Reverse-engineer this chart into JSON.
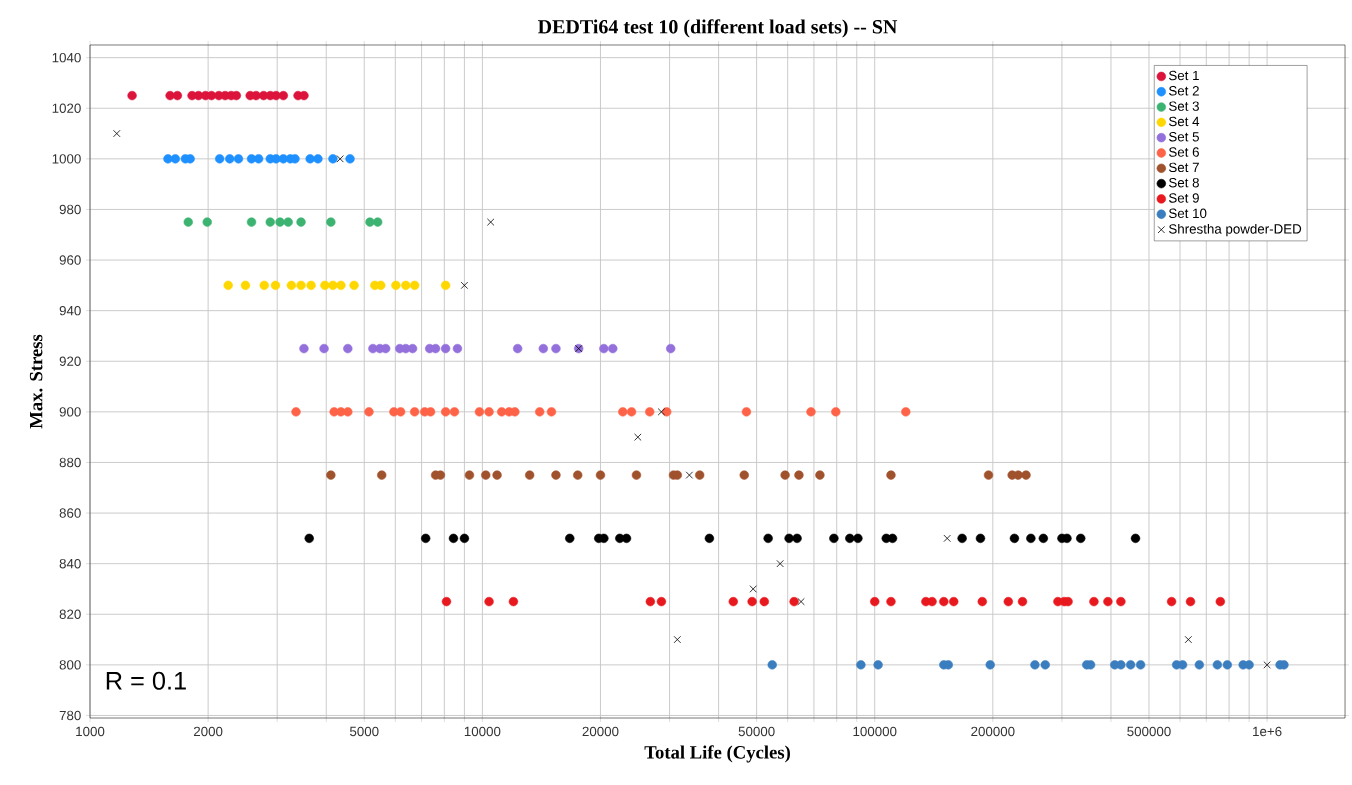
{
  "chart_data": {
    "type": "scatter",
    "title": "DEDTi64 test 10 (different load sets) -- SN",
    "xlabel": "Total Life (Cycles)",
    "ylabel": "Max. Stress",
    "log": "x",
    "grid": true,
    "legend": "top right",
    "marker": "circle",
    "xlim": [
      1000,
      1580000
    ],
    "ylim": [
      779,
      1045
    ],
    "xticks": [
      1000,
      2000,
      {
        "value": 3000,
        "label": null
      },
      {
        "value": 4000,
        "label": null
      },
      5000,
      {
        "value": 6000,
        "label": null
      },
      {
        "value": 7000,
        "label": null
      },
      {
        "value": 8000,
        "label": null
      },
      {
        "value": 9000,
        "label": null
      },
      10000,
      20000,
      {
        "value": 30000,
        "label": null
      },
      {
        "value": 40000,
        "label": null
      },
      50000,
      {
        "value": 60000,
        "label": null
      },
      {
        "value": 70000,
        "label": null
      },
      {
        "value": 80000,
        "label": null
      },
      {
        "value": 90000,
        "label": null
      },
      100000,
      200000,
      {
        "value": 300000,
        "label": null
      },
      {
        "value": 400000,
        "label": null
      },
      500000,
      {
        "value": 600000,
        "label": null
      },
      {
        "value": 700000,
        "label": null
      },
      {
        "value": 800000,
        "label": null
      },
      {
        "value": 900000,
        "label": null
      },
      {
        "value": 1000000,
        "label": "1e+6"
      }
    ],
    "yticks": [
      780,
      800,
      820,
      840,
      860,
      880,
      900,
      920,
      940,
      960,
      980,
      1000,
      1020,
      1040
    ],
    "annotations": [
      "R = 0.1"
    ],
    "series": [
      {
        "name": "Set 1",
        "color": "#dc143c",
        "x": [
          1280,
          1600,
          1670,
          1820,
          1890,
          1970,
          2040,
          2130,
          2210,
          2290,
          2360,
          2560,
          2650,
          2770,
          2880,
          2980,
          3110,
          3390,
          3510
        ],
        "values": [
          1025,
          1025,
          1025,
          1025,
          1025,
          1025,
          1025,
          1025,
          1025,
          1025,
          1025,
          1025,
          1025,
          1025,
          1025,
          1025,
          1025,
          1025,
          1025
        ]
      },
      {
        "name": "Set 2",
        "color": "#1e90ff",
        "x": [
          1580,
          1650,
          1750,
          1800,
          2140,
          2270,
          2390,
          2580,
          2690,
          2880,
          2980,
          3110,
          3240,
          3330,
          3640,
          3810,
          4160,
          4600
        ],
        "values": [
          1000,
          1000,
          1000,
          1000,
          1000,
          1000,
          1000,
          1000,
          1000,
          1000,
          1000,
          1000,
          1000,
          1000,
          1000,
          1000,
          1000,
          1000
        ]
      },
      {
        "name": "Set 3",
        "color": "#3cb371",
        "x": [
          1780,
          1990,
          2580,
          2880,
          3050,
          3200,
          3450,
          4110,
          5170,
          5410
        ],
        "values": [
          975,
          975,
          975,
          975,
          975,
          975,
          975,
          975,
          975,
          975
        ]
      },
      {
        "name": "Set 4",
        "color": "#ffd700",
        "x": [
          2250,
          2490,
          2780,
          2970,
          3260,
          3450,
          3660,
          3970,
          4160,
          4360,
          4710,
          5320,
          5510,
          6020,
          6380,
          6720,
          8060
        ],
        "values": [
          950,
          950,
          950,
          950,
          950,
          950,
          950,
          950,
          950,
          950,
          950,
          950,
          950,
          950,
          950,
          950,
          950
        ]
      },
      {
        "name": "Set 5",
        "color": "#9370db",
        "x": [
          3510,
          3950,
          4540,
          5260,
          5480,
          5670,
          6160,
          6380,
          6640,
          7340,
          7600,
          8060,
          8640,
          12300,
          14300,
          15400,
          17600,
          20400,
          21500,
          30200
        ],
        "values": [
          925,
          925,
          925,
          925,
          925,
          925,
          925,
          925,
          925,
          925,
          925,
          925,
          925,
          925,
          925,
          925,
          925,
          925,
          925,
          925
        ]
      },
      {
        "name": "Set 6",
        "color": "#ff6347",
        "x": [
          3350,
          4190,
          4360,
          4540,
          5140,
          5950,
          6190,
          6720,
          7130,
          7380,
          8060,
          8490,
          9830,
          10400,
          11200,
          11700,
          12100,
          14000,
          15000,
          22800,
          24000,
          26700,
          29500,
          47100,
          68800,
          79600,
          120000
        ],
        "values": [
          900,
          900,
          900,
          900,
          900,
          900,
          900,
          900,
          900,
          900,
          900,
          900,
          900,
          900,
          900,
          900,
          900,
          900,
          900,
          900,
          900,
          900,
          900,
          900,
          900,
          900,
          900
        ]
      },
      {
        "name": "Set 7",
        "color": "#a0522d",
        "x": [
          4110,
          5540,
          7600,
          7820,
          9270,
          10200,
          10900,
          13200,
          15400,
          17500,
          20000,
          24700,
          30700,
          31400,
          35800,
          46500,
          59100,
          64100,
          72500,
          110000,
          195000,
          224000,
          232000,
          243000
        ],
        "values": [
          875,
          875,
          875,
          875,
          875,
          875,
          875,
          875,
          875,
          875,
          875,
          875,
          875,
          875,
          875,
          875,
          875,
          875,
          875,
          875,
          875,
          875,
          875,
          875
        ]
      },
      {
        "name": "Set 8",
        "color": "#000000",
        "x": [
          3620,
          7170,
          8440,
          9000,
          16700,
          19800,
          20400,
          22400,
          23300,
          37900,
          53500,
          60500,
          63400,
          78700,
          86400,
          90600,
          107000,
          111000,
          167000,
          186000,
          227000,
          250000,
          269000,
          300000,
          309000,
          335000,
          462000
        ],
        "values": [
          850,
          850,
          850,
          850,
          850,
          850,
          850,
          850,
          850,
          850,
          850,
          850,
          850,
          850,
          850,
          850,
          850,
          850,
          850,
          850,
          850,
          850,
          850,
          850,
          850,
          850,
          850
        ]
      },
      {
        "name": "Set 9",
        "color": "#e8191e",
        "x": [
          8100,
          10400,
          12000,
          26800,
          28600,
          43600,
          48700,
          52300,
          62300,
          100000,
          110000,
          135000,
          140000,
          150000,
          159000,
          188000,
          219000,
          238000,
          293000,
          304000,
          311000,
          362000,
          393000,
          424000,
          571000,
          638000,
          760000
        ],
        "values": [
          825,
          825,
          825,
          825,
          825,
          825,
          825,
          825,
          825,
          825,
          825,
          825,
          825,
          825,
          825,
          825,
          825,
          825,
          825,
          825,
          825,
          825,
          825,
          825,
          825,
          825,
          825
        ]
      },
      {
        "name": "Set 10",
        "color": "#3a7ebf",
        "x": [
          54800,
          92200,
          102000,
          150000,
          154000,
          197000,
          256000,
          272000,
          347000,
          355000,
          409000,
          424000,
          449000,
          476000,
          588000,
          609000,
          672000,
          747000,
          792000,
          869000,
          900000,
          1079000,
          1104000
        ],
        "values": [
          800,
          800,
          800,
          800,
          800,
          800,
          800,
          800,
          800,
          800,
          800,
          800,
          800,
          800,
          800,
          800,
          800,
          800,
          800,
          800,
          800,
          800,
          800
        ]
      },
      {
        "name": "Shrestha powder-DED",
        "color": "#000000",
        "marker": "cross",
        "x": [
          1170,
          4340,
          10500,
          9000,
          17600,
          28600,
          24900,
          33700,
          153000,
          57400,
          49000,
          64900,
          31400,
          630000,
          1000000
        ],
        "values": [
          1010,
          1000,
          975,
          950,
          925,
          900,
          890,
          875,
          850,
          840,
          830,
          825,
          810,
          810,
          800
        ]
      }
    ]
  }
}
